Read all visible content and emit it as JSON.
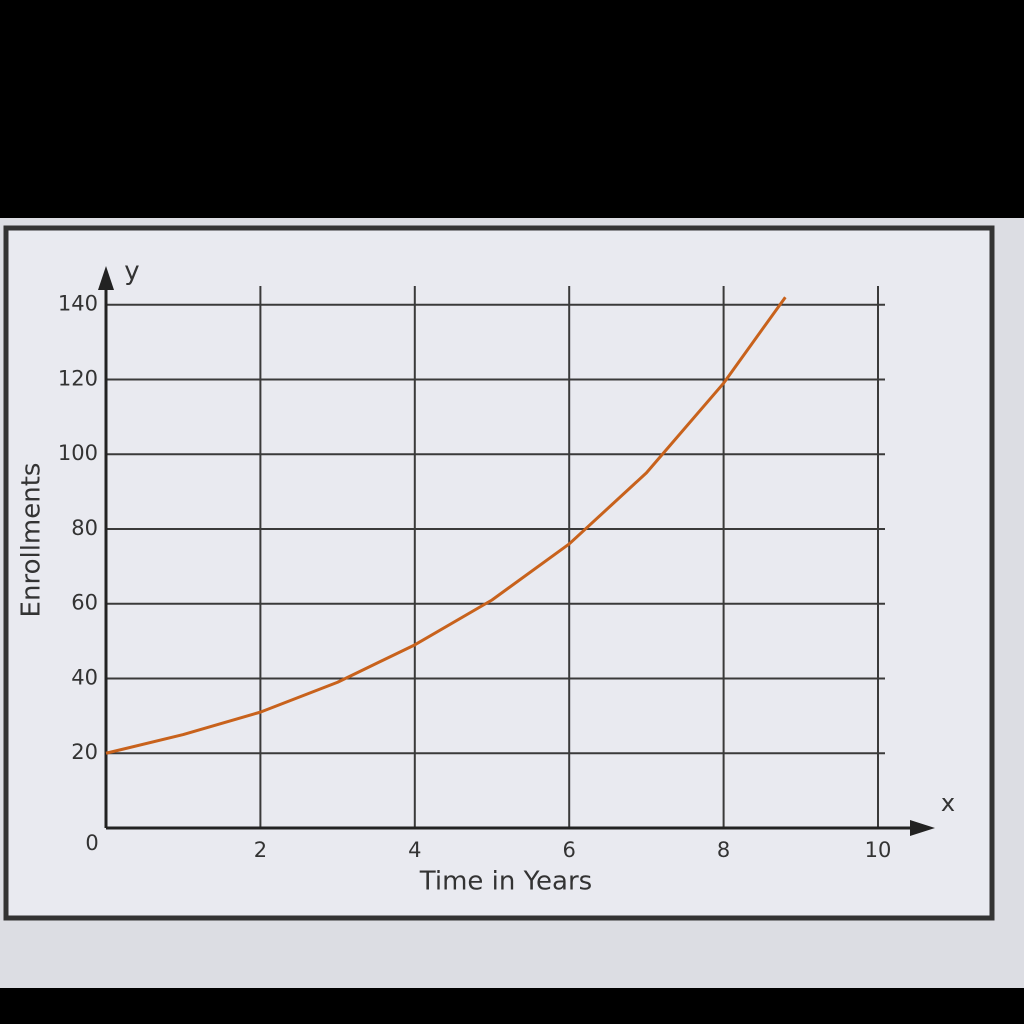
{
  "chart_data": {
    "type": "line",
    "x_axis_label": "Time in Years",
    "y_axis_label": "Enrollments",
    "x_axis_symbol": "x",
    "y_axis_symbol": "y",
    "x": [
      0,
      1,
      2,
      3,
      4,
      5,
      6,
      7,
      8,
      8.8
    ],
    "series": [
      {
        "name": "Enrollments",
        "color": "#c8621c",
        "values": [
          20,
          25,
          31,
          39,
          49,
          61,
          76,
          95,
          119,
          142
        ]
      }
    ],
    "xlim": [
      0,
      10
    ],
    "ylim": [
      0,
      145
    ],
    "xticks": [
      2,
      4,
      6,
      8,
      10
    ],
    "yticks": [
      0,
      20,
      40,
      60,
      80,
      100,
      120,
      140
    ],
    "grid": true
  }
}
